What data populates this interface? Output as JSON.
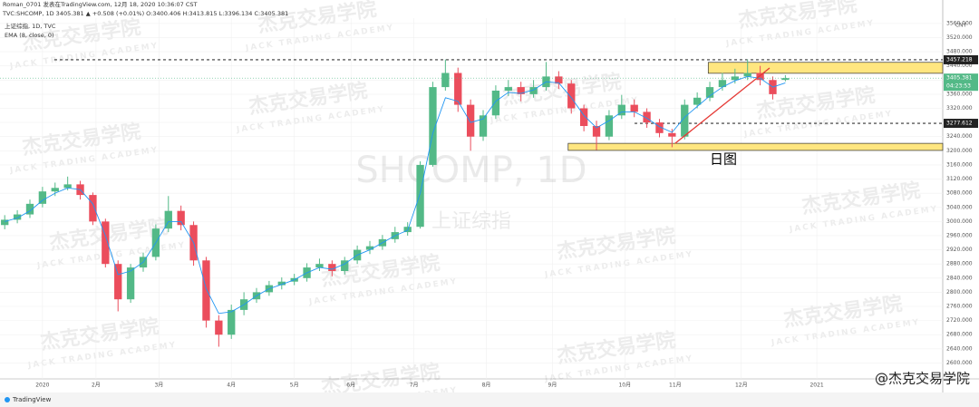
{
  "header": {
    "author_line": "Roman_0701 发表在TradingView.com, 12月 18, 2020 10:36:07 CST",
    "symbol_line": "TVC:SHCOMP, 1D 3405.381 ▲ +0.508 (+0.01%) O:3400.406 H:3413.815 L:3396.134 C:3405.381"
  },
  "chart_data": {
    "type": "candlestick",
    "legend": {
      "symbol": "上证综指, 1D, TVC",
      "indicator": "EMA (8, close, 0)"
    },
    "watermark": {
      "symbol": "SHCOMP, 1D",
      "name": "上证综指",
      "brand": "杰克交易学院",
      "brand_en": "JACK TRADING ACADEMY"
    },
    "currency": "CNY",
    "x": [
      -12,
      -8,
      -4,
      0,
      4,
      8,
      12,
      16,
      20,
      24,
      28,
      32,
      36,
      40,
      44,
      48,
      52,
      56,
      60,
      64,
      68,
      72,
      76,
      80,
      84,
      88,
      92,
      96,
      100,
      104,
      108,
      112,
      116,
      120,
      124,
      128,
      132,
      136,
      140,
      144,
      148,
      152,
      156,
      160,
      164,
      168,
      172,
      176,
      180,
      184,
      188,
      192,
      196,
      200,
      204,
      208,
      212,
      216,
      220,
      224,
      228,
      232,
      236
    ],
    "open": [
      2990,
      3005,
      3020,
      3050,
      3085,
      3095,
      3105,
      3075,
      3000,
      2880,
      2780,
      2870,
      2900,
      2980,
      3030,
      2990,
      2890,
      2720,
      2680,
      2750,
      2780,
      2800,
      2820,
      2830,
      2840,
      2870,
      2880,
      2860,
      2890,
      2920,
      2930,
      2950,
      2970,
      2985,
      3160,
      3380,
      3420,
      3330,
      3240,
      3300,
      3370,
      3380,
      3360,
      3380,
      3410,
      3390,
      3320,
      3270,
      3240,
      3300,
      3330,
      3310,
      3280,
      3250,
      3240,
      3330,
      3350,
      3380,
      3400,
      3410,
      3420,
      3400,
      3400.406
    ],
    "high": [
      3018,
      3032,
      3062,
      3098,
      3110,
      3127,
      3115,
      3082,
      3008,
      2890,
      2880,
      2912,
      2992,
      3072,
      3045,
      3000,
      2900,
      2735,
      2765,
      2800,
      2812,
      2832,
      2842,
      2852,
      2882,
      2895,
      2890,
      2900,
      2932,
      2945,
      2962,
      2985,
      2998,
      3170,
      3395,
      3458,
      3435,
      3345,
      3315,
      3385,
      3400,
      3395,
      3400,
      3451,
      3425,
      3400,
      3330,
      3285,
      3315,
      3358,
      3345,
      3320,
      3290,
      3262,
      3345,
      3365,
      3395,
      3420,
      3432,
      3458,
      3440,
      3410,
      3413.815
    ],
    "low": [
      2978,
      2995,
      3010,
      3040,
      3072,
      3088,
      3062,
      2990,
      2870,
      2746,
      2770,
      2858,
      2890,
      2970,
      2975,
      2875,
      2700,
      2646,
      2668,
      2735,
      2770,
      2790,
      2808,
      2820,
      2830,
      2860,
      2845,
      2850,
      2880,
      2908,
      2920,
      2940,
      2960,
      2980,
      3155,
      3370,
      3310,
      3200,
      3228,
      3290,
      3355,
      3340,
      3350,
      3370,
      3375,
      3305,
      3255,
      3202,
      3230,
      3290,
      3295,
      3265,
      3238,
      3210,
      3232,
      3320,
      3340,
      3370,
      3390,
      3400,
      3385,
      3345,
      3396.134
    ],
    "close": [
      3005,
      3020,
      3050,
      3085,
      3095,
      3105,
      3075,
      3000,
      2880,
      2780,
      2870,
      2900,
      2980,
      3030,
      2990,
      2890,
      2720,
      2680,
      2750,
      2780,
      2800,
      2820,
      2830,
      2840,
      2870,
      2880,
      2860,
      2890,
      2920,
      2930,
      2950,
      2970,
      2985,
      3160,
      3380,
      3420,
      3330,
      3240,
      3300,
      3370,
      3380,
      3360,
      3380,
      3410,
      3390,
      3320,
      3270,
      3240,
      3300,
      3330,
      3310,
      3280,
      3250,
      3240,
      3330,
      3350,
      3380,
      3400,
      3410,
      3420,
      3400,
      3360,
      3405.381
    ],
    "ema": [
      3000,
      3010,
      3030,
      3060,
      3080,
      3095,
      3090,
      3050,
      2960,
      2850,
      2860,
      2885,
      2940,
      3000,
      3000,
      2940,
      2810,
      2740,
      2745,
      2765,
      2790,
      2810,
      2822,
      2835,
      2855,
      2870,
      2865,
      2880,
      2905,
      2920,
      2940,
      2960,
      2975,
      3080,
      3250,
      3350,
      3340,
      3280,
      3290,
      3340,
      3365,
      3362,
      3372,
      3395,
      3392,
      3350,
      3300,
      3265,
      3285,
      3310,
      3310,
      3292,
      3268,
      3252,
      3295,
      3325,
      3355,
      3380,
      3398,
      3410,
      3405,
      3380,
      3392
    ],
    "up_color": "#53b987",
    "down_color": "#eb4d5c",
    "ema_color": "#2196f3",
    "countdown": "04:23:53",
    "hlines": [
      3457.218,
      3277.612
    ],
    "zones": [
      {
        "x0": 211.5,
        "y": [
          3419,
          3450
        ]
      },
      {
        "x0": 167,
        "y": [
          3201,
          3221
        ]
      }
    ],
    "trendline": {
      "x": [
        201,
        231
      ],
      "y": [
        3221,
        3434
      ]
    },
    "annotation": "日图",
    "xlim": [
      -13.5,
      286
    ],
    "ylim": [
      2555,
      3575
    ],
    "xticks": [
      {
        "value": 0,
        "label": "2020"
      },
      {
        "value": 17,
        "label": "2月"
      },
      {
        "value": 37,
        "label": "3月"
      },
      {
        "value": 60,
        "label": "4月"
      },
      {
        "value": 80,
        "label": "5月"
      },
      {
        "value": 98,
        "label": "6月"
      },
      {
        "value": 118,
        "label": "7月"
      },
      {
        "value": 141,
        "label": "8月"
      },
      {
        "value": 162,
        "label": "9月"
      },
      {
        "value": 185,
        "label": "10月"
      },
      {
        "value": 201,
        "label": "11月"
      },
      {
        "value": 222,
        "label": "12月"
      },
      {
        "value": 246,
        "label": "2021"
      }
    ],
    "yticks": [
      {
        "value": 2600,
        "label": "2600.000"
      },
      {
        "value": 2640,
        "label": "2640.000"
      },
      {
        "value": 2680,
        "label": "2680.000"
      },
      {
        "value": 2720,
        "label": "2720.000"
      },
      {
        "value": 2760,
        "label": "2760.000"
      },
      {
        "value": 2800,
        "label": "2800.000"
      },
      {
        "value": 2840,
        "label": "2840.000"
      },
      {
        "value": 2880,
        "label": "2880.000"
      },
      {
        "value": 2920,
        "label": "2920.000"
      },
      {
        "value": 2960,
        "label": "2960.000"
      },
      {
        "value": 3000,
        "label": "3000.000"
      },
      {
        "value": 3040,
        "label": "3040.000"
      },
      {
        "value": 3080,
        "label": "3080.000"
      },
      {
        "value": 3120,
        "label": "3120.000"
      },
      {
        "value": 3160,
        "label": "3160.000"
      },
      {
        "value": 3200,
        "label": "3200.000"
      },
      {
        "value": 3240,
        "label": "3240.000"
      },
      {
        "value": 3280,
        "label": "3280.000"
      },
      {
        "value": 3320,
        "label": "3320.000"
      },
      {
        "value": 3360,
        "label": "3360.000"
      },
      {
        "value": 3400,
        "label": "3400.000"
      },
      {
        "value": 3440,
        "label": "3440.000"
      },
      {
        "value": 3480,
        "label": "3480.000"
      },
      {
        "value": 3520,
        "label": "3520.000"
      },
      {
        "value": 3560,
        "label": "3560.000"
      }
    ],
    "footer": {
      "logo": "TradingView",
      "credit": "@杰克交易学院"
    }
  }
}
